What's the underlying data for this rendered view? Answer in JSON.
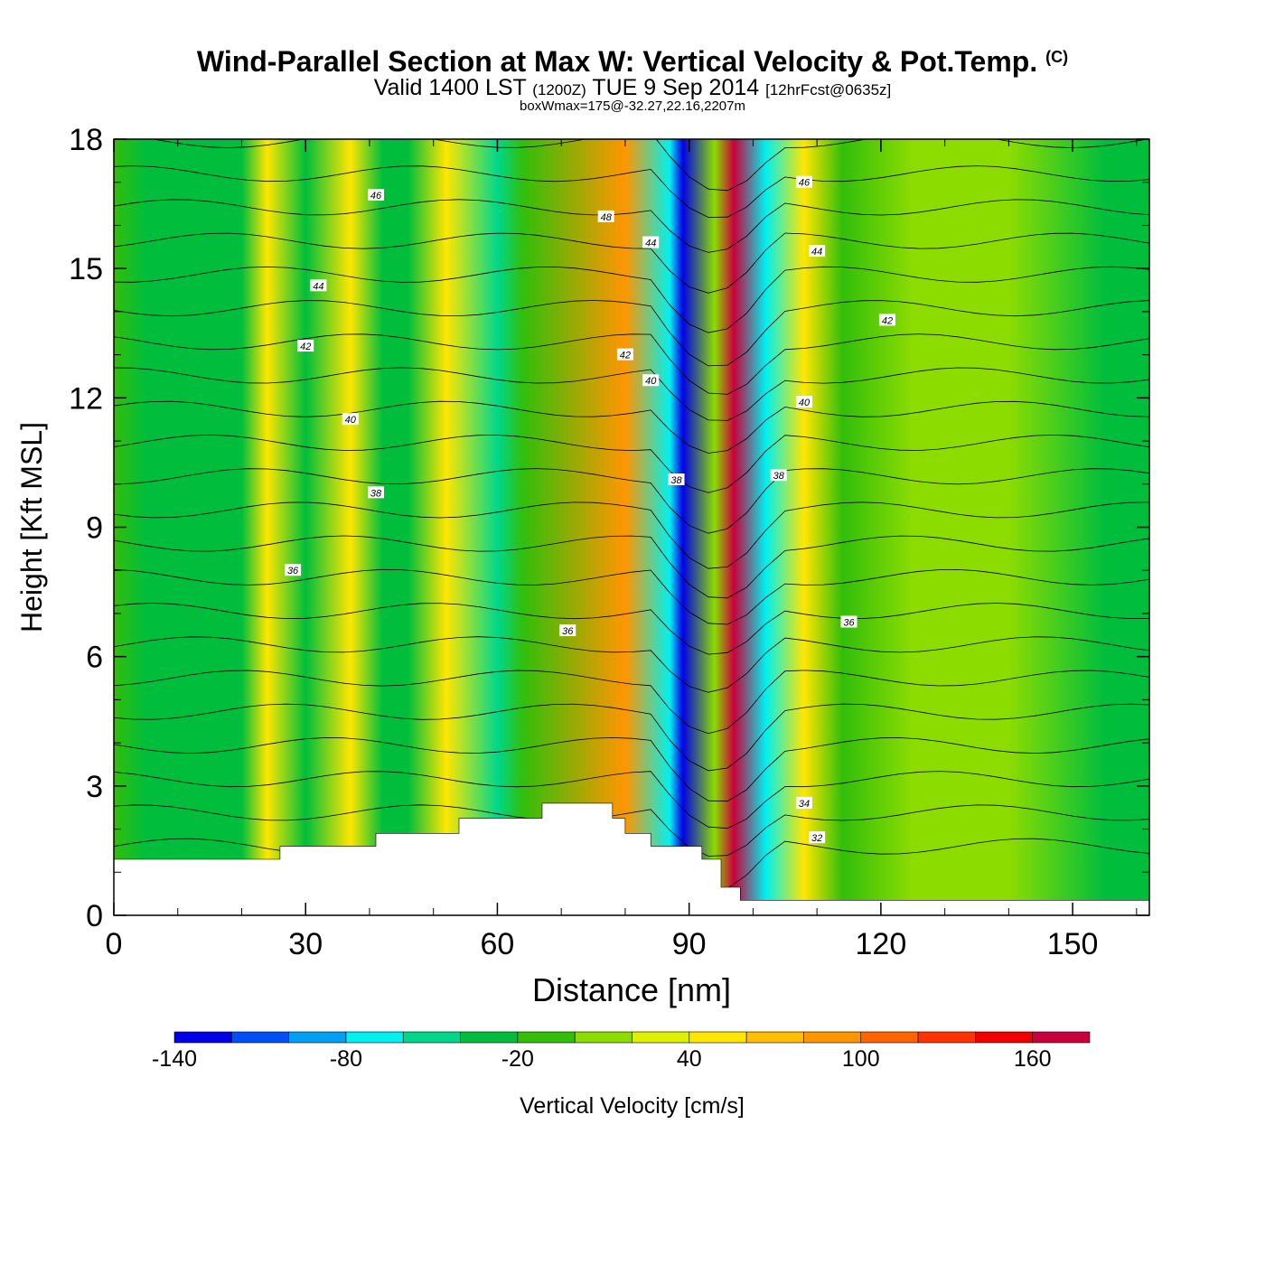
{
  "header": {
    "title": "Wind-Parallel Section at Max W: Vertical Velocity & Pot.Temp.",
    "copyright": "(C)",
    "subtitle_valid": "Valid 1400 LST",
    "subtitle_zulu": "(1200Z)",
    "subtitle_date": "TUE 9 Sep 2014",
    "subtitle_fcst": "[12hrFcst@0635z]",
    "subtitle_box": "boxWmax=175@-32.27,22.16,2207m"
  },
  "chart_data": {
    "type": "heatmap",
    "title": "Wind-Parallel Section at Max W: Vertical Velocity & Pot.Temp.",
    "xlabel": "Distance [nm]",
    "ylabel": "Height [Kft MSL]",
    "xlim": [
      0,
      162
    ],
    "ylim": [
      0,
      18
    ],
    "xticks": [
      0,
      30,
      60,
      90,
      120,
      150
    ],
    "xtick_labels": [
      "0",
      "30",
      "60",
      "90",
      "120",
      "150"
    ],
    "yticks": [
      0,
      3,
      6,
      9,
      12,
      15,
      18
    ],
    "ytick_labels": [
      "0",
      "3",
      "6",
      "9",
      "12",
      "15",
      "18"
    ],
    "colorbar": {
      "label": "Vertical Velocity [cm/s]",
      "levels": [
        -140,
        -120,
        -100,
        -80,
        -60,
        -40,
        -20,
        0,
        20,
        40,
        60,
        80,
        100,
        120,
        140,
        160,
        180
      ],
      "tick_values": [
        -140,
        -80,
        -20,
        40,
        100,
        160
      ],
      "tick_labels": [
        "-140",
        "-80",
        "-20",
        "40",
        "100",
        "160"
      ],
      "colors": [
        "#0000e6",
        "#0050f5",
        "#00a0f5",
        "#00f0f0",
        "#00d78c",
        "#00be3c",
        "#32be0a",
        "#8cdc00",
        "#dcf000",
        "#ffe600",
        "#ffbe00",
        "#ff9600",
        "#ff6400",
        "#ff3200",
        "#f00000",
        "#c8003c"
      ]
    },
    "vertical_velocity_columns": [
      {
        "x": 0,
        "w_cms": -10
      },
      {
        "x": 5,
        "w_cms": -25
      },
      {
        "x": 20,
        "w_cms": -25
      },
      {
        "x": 24,
        "w_cms": 40
      },
      {
        "x": 30,
        "w_cms": -40
      },
      {
        "x": 37,
        "w_cms": 45
      },
      {
        "x": 42,
        "w_cms": -25
      },
      {
        "x": 46,
        "w_cms": -25
      },
      {
        "x": 52,
        "w_cms": 45
      },
      {
        "x": 60,
        "w_cms": -50
      },
      {
        "x": 64,
        "w_cms": -20
      },
      {
        "x": 80,
        "w_cms": 95
      },
      {
        "x": 87,
        "w_cms": -80
      },
      {
        "x": 89,
        "w_cms": -130
      },
      {
        "x": 94,
        "w_cms": 10
      },
      {
        "x": 97,
        "w_cms": 175
      },
      {
        "x": 102,
        "w_cms": -70
      },
      {
        "x": 108,
        "w_cms": 45
      },
      {
        "x": 114,
        "w_cms": -20
      },
      {
        "x": 125,
        "w_cms": 5
      },
      {
        "x": 140,
        "w_cms": 5
      },
      {
        "x": 155,
        "w_cms": -25
      }
    ],
    "terrain": [
      {
        "x": 0,
        "height_kft": 1.3
      },
      {
        "x": 26,
        "height_kft": 1.3
      },
      {
        "x": 26,
        "height_kft": 1.6
      },
      {
        "x": 41,
        "height_kft": 1.6
      },
      {
        "x": 41,
        "height_kft": 1.9
      },
      {
        "x": 54,
        "height_kft": 1.9
      },
      {
        "x": 54,
        "height_kft": 2.25
      },
      {
        "x": 67,
        "height_kft": 2.25
      },
      {
        "x": 67,
        "height_kft": 2.6
      },
      {
        "x": 78,
        "height_kft": 2.6
      },
      {
        "x": 78,
        "height_kft": 2.25
      },
      {
        "x": 80,
        "height_kft": 2.25
      },
      {
        "x": 80,
        "height_kft": 1.9
      },
      {
        "x": 84,
        "height_kft": 1.9
      },
      {
        "x": 84,
        "height_kft": 1.6
      },
      {
        "x": 92,
        "height_kft": 1.6
      },
      {
        "x": 92,
        "height_kft": 1.3
      },
      {
        "x": 95,
        "height_kft": 1.3
      },
      {
        "x": 95,
        "height_kft": 0.65
      },
      {
        "x": 98,
        "height_kft": 0.65
      },
      {
        "x": 98,
        "height_kft": 0.35
      },
      {
        "x": 162,
        "height_kft": 0.35
      }
    ],
    "potential_temperature_contours": {
      "units": "degC (labelled)",
      "labels": [
        {
          "text": "46",
          "x": 41,
          "y": 16.7
        },
        {
          "text": "44",
          "x": 32,
          "y": 14.6
        },
        {
          "text": "42",
          "x": 30,
          "y": 13.2
        },
        {
          "text": "40",
          "x": 37,
          "y": 11.5
        },
        {
          "text": "38",
          "x": 41,
          "y": 9.8
        },
        {
          "text": "36",
          "x": 28,
          "y": 8.0
        },
        {
          "text": "36",
          "x": 71,
          "y": 6.6
        },
        {
          "text": "48",
          "x": 77,
          "y": 16.2
        },
        {
          "text": "44",
          "x": 84,
          "y": 15.6
        },
        {
          "text": "42",
          "x": 80,
          "y": 13.0
        },
        {
          "text": "40",
          "x": 84,
          "y": 12.4
        },
        {
          "text": "38",
          "x": 88,
          "y": 10.1
        },
        {
          "text": "46",
          "x": 108,
          "y": 17.0
        },
        {
          "text": "44",
          "x": 110,
          "y": 15.4
        },
        {
          "text": "42",
          "x": 121,
          "y": 13.8
        },
        {
          "text": "40",
          "x": 108,
          "y": 11.9
        },
        {
          "text": "38",
          "x": 104,
          "y": 10.2
        },
        {
          "text": "36",
          "x": 115,
          "y": 6.8
        },
        {
          "text": "34",
          "x": 108,
          "y": 2.6
        },
        {
          "text": "32",
          "x": 110,
          "y": 1.8
        }
      ]
    }
  }
}
